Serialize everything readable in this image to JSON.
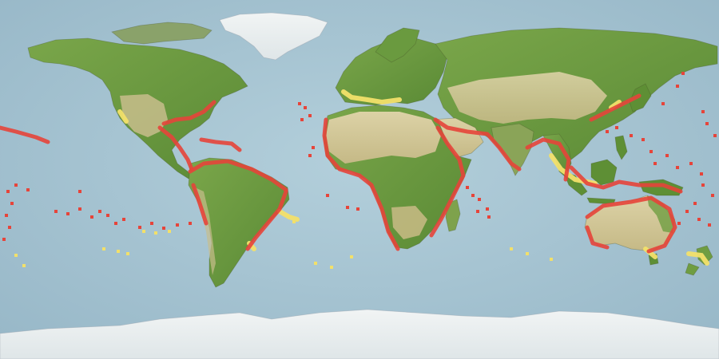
{
  "map": {
    "type": "species-distribution-world-map",
    "projection": "equirectangular",
    "colors": {
      "ocean": "#a9c6d4",
      "ocean_deep": "#9dbccb",
      "land_green": "#6f9d42",
      "land_dark_green": "#4f7f2e",
      "land_desert": "#d3c89a",
      "land_arid": "#bfb27a",
      "ice": "#e9eef0",
      "range_high_probability": "#e6443a",
      "range_low_probability": "#f2e06a"
    },
    "legend": {
      "visible": false
    },
    "occurrence_classes": [
      "high-probability",
      "low-probability"
    ]
  }
}
